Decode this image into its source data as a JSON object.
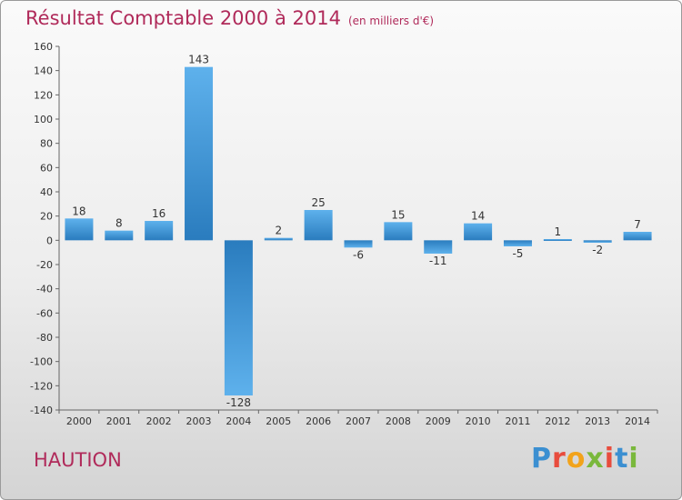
{
  "title": {
    "main": "Résultat Comptable 2000 à 2014",
    "sub": "(en milliers d'€)"
  },
  "town": "HAUTION",
  "logo": {
    "text": "Proxiti",
    "colors": [
      "#3b8fd1",
      "#e84c3d",
      "#f2a31b",
      "#7ab83c"
    ]
  },
  "colors": {
    "title": "#b02a5a",
    "bar_light": "#5eb1ec",
    "bar_dark": "#2a7cbe",
    "axis": "#666666",
    "label": "#333333"
  },
  "chart_data": {
    "type": "bar",
    "title": "Résultat Comptable 2000 à 2014",
    "subtitle": "(en milliers d'€)",
    "xlabel": "",
    "ylabel": "",
    "categories": [
      "2000",
      "2001",
      "2002",
      "2003",
      "2004",
      "2005",
      "2006",
      "2007",
      "2008",
      "2009",
      "2010",
      "2011",
      "2012",
      "2013",
      "2014"
    ],
    "values": [
      18,
      8,
      16,
      143,
      -128,
      2,
      25,
      -6,
      15,
      -11,
      14,
      -5,
      1,
      -2,
      7
    ],
    "data_labels": [
      "18",
      "8",
      "16",
      "143",
      "-128",
      "2",
      "25",
      "-6",
      "15",
      "-11",
      "14",
      "-5",
      "1",
      "-2",
      "7"
    ],
    "ylim": [
      -140,
      160
    ],
    "yticks": [
      160,
      140,
      120,
      100,
      80,
      60,
      40,
      20,
      0,
      -20,
      -40,
      -60,
      -80,
      -100,
      -120,
      -140
    ],
    "ytick_labels": [
      "160",
      "140",
      "120",
      "100",
      "80",
      "60",
      "40",
      "20",
      "0",
      "-20",
      "-40",
      "-60",
      "-80",
      "-100",
      "-120",
      "-140"
    ],
    "grid": false,
    "legend": "none"
  }
}
